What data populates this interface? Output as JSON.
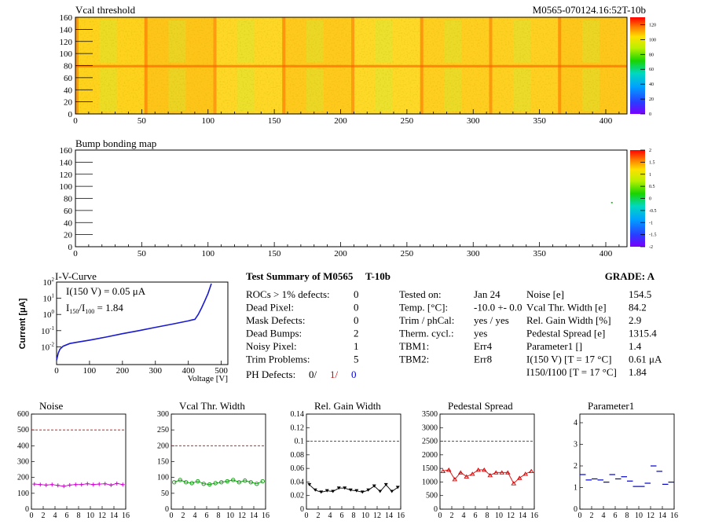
{
  "header": {
    "vcal_title": "Vcal threshold",
    "module_id": "M0565-070124.16:52T-10b",
    "bump_title": "Bump bonding map"
  },
  "colors": {
    "axis": "#000000",
    "iv_curve": "#1a1ad0",
    "noise": "#cc00cc",
    "vcal_width": "#009900",
    "gain": "#000000",
    "pedestal": "#dd0000",
    "param1": "#0000cc",
    "limit_line": "#cc0000",
    "ph_red": "#dd0000",
    "ph_blue": "#0000dd"
  },
  "summary": {
    "title": "Test Summary of M0565",
    "temp_code": "T-10b",
    "grade": "GRADE:  A",
    "left_rows": [
      {
        "label": "ROCs > 1% defects:",
        "value": "0"
      },
      {
        "label": "Dead Pixel:",
        "value": "0"
      },
      {
        "label": "Mask Defects:",
        "value": "0"
      },
      {
        "label": "Dead Bumps:",
        "value": "2"
      },
      {
        "label": "Noisy Pixel:",
        "value": "1"
      },
      {
        "label": "Trim Problems:",
        "value": "5"
      }
    ],
    "ph_label": "PH Defects:",
    "ph_values": [
      "0/",
      "1/",
      "0"
    ],
    "mid_rows": [
      {
        "label": "Tested on:",
        "value": "Jan 24"
      },
      {
        "label": "Temp. [°C]:",
        "value": "-10.0 +- 0.0"
      },
      {
        "label": "Trim / phCal:",
        "value": "yes / yes"
      },
      {
        "label": "Therm. cycl.:",
        "value": "yes"
      },
      {
        "label": "TBM1:",
        "value": "Err4"
      },
      {
        "label": "TBM2:",
        "value": "Err8"
      }
    ],
    "right_rows": [
      {
        "label": "Noise [e]",
        "value": "154.5"
      },
      {
        "label": "Vcal Thr. Width [e]",
        "value": "84.2"
      },
      {
        "label": "Rel. Gain Width [%]",
        "value": "2.9"
      },
      {
        "label": "Pedestal Spread [e]",
        "value": "1315.4"
      },
      {
        "label": "Parameter1 []",
        "value": "1.4"
      },
      {
        "label": "I(150 V) [T = 17 °C]",
        "value": "0.61 μA"
      },
      {
        "label": "I150/I100 [T = 17 °C]",
        "value": "1.84"
      }
    ]
  },
  "iv": {
    "title": "I-V-Curve",
    "annot1": "I(150 V) = 0.05 μA",
    "annot2_num": "I",
    "annot2_sub1": "150",
    "annot2_slash": "/I",
    "annot2_sub2": "100",
    "annot2_val": " =  1.84",
    "ylabel": "Current [μA]",
    "xlabel": "Voltage [V]"
  },
  "chart_data": [
    {
      "type": "heatmap",
      "title": "Vcal threshold",
      "x_range": [
        0,
        416
      ],
      "y_range": [
        0,
        160
      ],
      "x_ticks": [
        0,
        50,
        100,
        150,
        200,
        250,
        300,
        350,
        400
      ],
      "y_ticks": [
        0,
        20,
        40,
        60,
        80,
        100,
        120,
        140,
        160
      ],
      "z_range": [
        0,
        130
      ],
      "z_ticks": [
        0,
        20,
        40,
        60,
        80,
        100,
        120
      ],
      "palette": "rainbow, mostly yellow-orange"
    },
    {
      "type": "heatmap",
      "title": "Bump bonding map",
      "x_range": [
        0,
        416
      ],
      "y_range": [
        0,
        160
      ],
      "x_ticks": [
        0,
        50,
        100,
        150,
        200,
        250,
        300,
        350,
        400
      ],
      "y_ticks": [
        0,
        20,
        40,
        60,
        80,
        100,
        120,
        140,
        160
      ],
      "z_range": [
        -2,
        2
      ],
      "z_ticks": [
        -2,
        -1.5,
        -1,
        -0.5,
        0,
        0.5,
        1,
        1.5,
        2
      ],
      "points": [
        [
          404,
          74
        ]
      ]
    },
    {
      "type": "line",
      "title": "I-V-Curve",
      "xlabel": "Voltage [V]",
      "ylabel": "Current [μA]",
      "x_ticks": [
        0,
        100,
        200,
        300,
        400,
        500
      ],
      "y_log": true,
      "x": [
        0,
        5,
        10,
        20,
        40,
        60,
        80,
        100,
        150,
        200,
        250,
        300,
        350,
        400,
        410,
        420,
        430,
        440,
        450,
        460,
        470
      ],
      "y": [
        0.0015,
        0.004,
        0.007,
        0.011,
        0.016,
        0.019,
        0.022,
        0.026,
        0.04,
        0.065,
        0.1,
        0.16,
        0.25,
        0.4,
        0.45,
        0.5,
        1.0,
        2.5,
        7,
        20,
        80
      ]
    },
    {
      "type": "scatter",
      "title": "Noise",
      "x_ticks": [
        0,
        2,
        4,
        6,
        8,
        10,
        12,
        14,
        16
      ],
      "ylim": [
        0,
        600
      ],
      "y_ticks": [
        0,
        100,
        200,
        300,
        400,
        500,
        600
      ],
      "limit": 500,
      "x": [
        0,
        1,
        2,
        3,
        4,
        5,
        6,
        7,
        8,
        9,
        10,
        11,
        12,
        13,
        14,
        15
      ],
      "y": [
        158,
        155,
        152,
        155,
        150,
        145,
        152,
        155,
        155,
        160,
        155,
        158,
        160,
        152,
        162,
        155
      ]
    },
    {
      "type": "scatter",
      "title": "Vcal Thr. Width",
      "x_ticks": [
        0,
        2,
        4,
        6,
        8,
        10,
        12,
        14,
        16
      ],
      "ylim": [
        0,
        300
      ],
      "y_ticks": [
        0,
        50,
        100,
        150,
        200,
        250,
        300
      ],
      "limit": 200,
      "x": [
        0,
        1,
        2,
        3,
        4,
        5,
        6,
        7,
        8,
        9,
        10,
        11,
        12,
        13,
        14,
        15
      ],
      "y": [
        85,
        92,
        85,
        82,
        88,
        80,
        78,
        82,
        85,
        88,
        92,
        85,
        90,
        85,
        80,
        88
      ]
    },
    {
      "type": "scatter",
      "title": "Rel. Gain Width",
      "x_ticks": [
        0,
        2,
        4,
        6,
        8,
        10,
        12,
        14,
        16
      ],
      "ylim": [
        0,
        0.14
      ],
      "y_ticks": [
        0,
        0.02,
        0.04,
        0.06,
        0.08,
        0.1,
        0.12,
        0.14
      ],
      "limit": 0.1,
      "x": [
        0,
        1,
        2,
        3,
        4,
        5,
        6,
        7,
        8,
        9,
        10,
        11,
        12,
        13,
        14,
        15
      ],
      "y": [
        0.036,
        0.028,
        0.025,
        0.027,
        0.026,
        0.031,
        0.031,
        0.028,
        0.027,
        0.025,
        0.028,
        0.034,
        0.026,
        0.036,
        0.026,
        0.032
      ]
    },
    {
      "type": "scatter",
      "title": "Pedestal Spread",
      "x_ticks": [
        0,
        2,
        4,
        6,
        8,
        10,
        12,
        14,
        16
      ],
      "ylim": [
        0,
        3500
      ],
      "y_ticks": [
        0,
        500,
        1000,
        1500,
        2000,
        2500,
        3000,
        3500
      ],
      "limit": 2500,
      "x": [
        0,
        1,
        2,
        3,
        4,
        5,
        6,
        7,
        8,
        9,
        10,
        11,
        12,
        13,
        14,
        15
      ],
      "y": [
        1400,
        1450,
        1100,
        1350,
        1200,
        1300,
        1450,
        1450,
        1250,
        1350,
        1350,
        1350,
        950,
        1150,
        1300,
        1400
      ]
    },
    {
      "type": "scatter",
      "title": "Parameter1",
      "x_ticks": [
        0,
        2,
        4,
        6,
        8,
        10,
        12,
        14,
        16
      ],
      "ylim": [
        0,
        4.4
      ],
      "y_ticks": [
        0,
        1,
        2,
        3,
        4
      ],
      "x": [
        0,
        1,
        2,
        3,
        4,
        5,
        6,
        7,
        8,
        9,
        10,
        11,
        12,
        13,
        14,
        15
      ],
      "y": [
        1.6,
        1.35,
        1.4,
        1.35,
        1.25,
        1.6,
        1.4,
        1.5,
        1.3,
        1.05,
        1.05,
        1.2,
        2.0,
        1.75,
        1.15,
        1.25
      ]
    }
  ]
}
